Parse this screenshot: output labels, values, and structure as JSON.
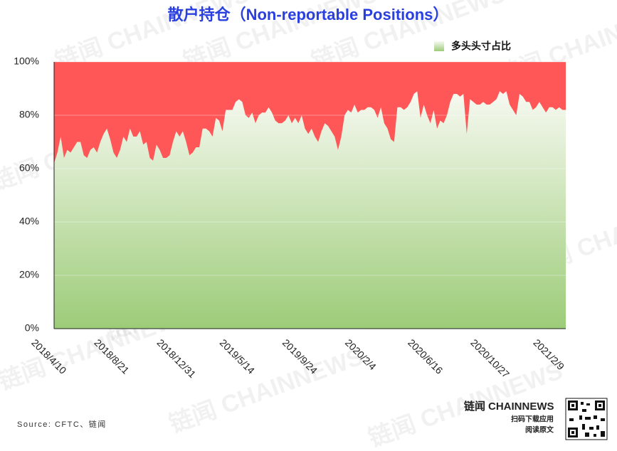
{
  "chart_data": {
    "type": "area",
    "title": "散户持仓（Non-reportable Positions）",
    "categories": [
      "2018/4/10",
      null,
      null,
      null,
      null,
      null,
      null,
      null,
      null,
      null,
      null,
      null,
      null,
      null,
      null,
      null,
      null,
      null,
      null,
      "2018/8/21",
      null,
      null,
      null,
      null,
      null,
      null,
      null,
      null,
      null,
      null,
      null,
      null,
      null,
      null,
      null,
      null,
      null,
      null,
      "2018/12/31",
      null,
      null,
      null,
      null,
      null,
      null,
      null,
      null,
      null,
      null,
      null,
      null,
      null,
      null,
      null,
      null,
      null,
      null,
      "2019/5/14",
      null,
      null,
      null,
      null,
      null,
      null,
      null,
      null,
      null,
      null,
      null,
      null,
      null,
      null,
      null,
      null,
      null,
      null,
      "2019/9/24",
      null,
      null,
      null,
      null,
      null,
      null,
      null,
      null,
      null,
      null,
      null,
      null,
      null,
      null,
      null,
      null,
      null,
      null,
      "2020/2/4",
      null,
      null,
      null,
      null,
      null,
      null,
      null,
      null,
      null,
      null,
      null,
      null,
      null,
      null,
      null,
      null,
      null,
      null,
      "2020/6/16",
      null,
      null,
      null,
      null,
      null,
      null,
      null,
      null,
      null,
      null,
      null,
      null,
      null,
      null,
      null,
      null,
      null,
      null,
      "2020/10/27",
      null,
      null,
      null,
      null,
      null,
      null,
      null,
      null,
      null,
      null,
      null,
      null,
      null,
      null,
      null,
      null,
      null,
      null,
      "2021/2/9",
      null,
      null,
      null
    ],
    "series": [
      {
        "name": "多头头寸占比",
        "color": "#9ccc78",
        "top_color": "#f7f9f1",
        "values": [
          62,
          66,
          72,
          64,
          67,
          66,
          68,
          70,
          70,
          65,
          64,
          67,
          68,
          66,
          70,
          73,
          75,
          71,
          66,
          64,
          67,
          72,
          70,
          75,
          72,
          72,
          74,
          69,
          70,
          64,
          63,
          69,
          67,
          64,
          64,
          65,
          70,
          74,
          72,
          74,
          70,
          65,
          66,
          68,
          68,
          75,
          75,
          74,
          72,
          79,
          78,
          74,
          82,
          82,
          82,
          85,
          86,
          85,
          80,
          79,
          81,
          77,
          80,
          81,
          81,
          83,
          81,
          78,
          77,
          77,
          78,
          80,
          77,
          79,
          77,
          80,
          75,
          73,
          75,
          72,
          70,
          74,
          77,
          76,
          74,
          72,
          67,
          72,
          80,
          82,
          81,
          84,
          81,
          82,
          82,
          83,
          83,
          82,
          79,
          83,
          77,
          75,
          71,
          70,
          83,
          83,
          82,
          83,
          85,
          88,
          89,
          79,
          84,
          80,
          77,
          82,
          75,
          78,
          77,
          80,
          85,
          88,
          88,
          87,
          88,
          73,
          86,
          85,
          84,
          84,
          85,
          84,
          84,
          85,
          86,
          89,
          88,
          89,
          84,
          82,
          80,
          88,
          87,
          85,
          85,
          82,
          83,
          85,
          83,
          81,
          83,
          83,
          82,
          83,
          82,
          82
        ]
      }
    ],
    "background_color": "#ff5757",
    "ylim": [
      0,
      100
    ],
    "yticks": [
      {
        "value": 0,
        "label": "0%"
      },
      {
        "value": 20,
        "label": "20%"
      },
      {
        "value": 40,
        "label": "40%"
      },
      {
        "value": 60,
        "label": "60%"
      },
      {
        "value": 80,
        "label": "80%"
      },
      {
        "value": 100,
        "label": "100%"
      }
    ],
    "grid": true,
    "legend": "top-right"
  },
  "source": "Source: CFTC、链闻",
  "watermark": "链闻 CHAINNEWS",
  "brand": {
    "name": "链闻",
    "latin": "CHAINNEWS",
    "line1": "扫码下载应用",
    "line2": "阅读原文"
  }
}
